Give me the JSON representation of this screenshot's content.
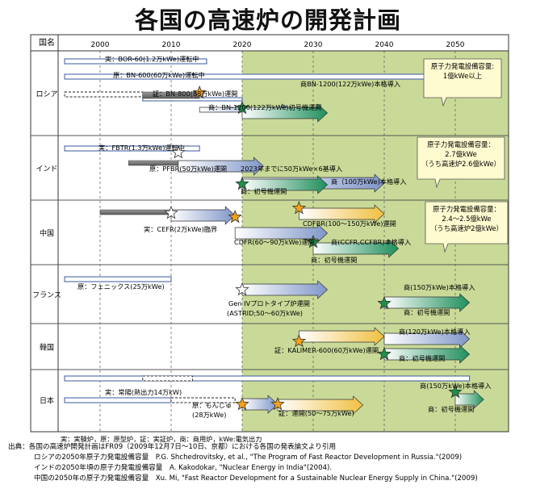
{
  "chart_data": {
    "type": "gantt",
    "title": "各国の高速炉の開発計画",
    "country_header": "国名",
    "x_ticks": [
      2000,
      2010,
      2020,
      2030,
      2040,
      2050
    ],
    "xlim": [
      1995,
      2055
    ],
    "shaded_from": 2020,
    "legend": "実：実験炉，原：原型炉，証：実証炉，商：商用炉，kWe:電気出力",
    "countries": [
      {
        "name": "ロシア",
        "callout": [
          "原子力発電設備容量:",
          "1億kWe以上"
        ],
        "bars": [
          {
            "kind": "solid",
            "start": 1995,
            "end": 2015
          },
          {
            "kind": "solid",
            "start": 1995,
            "end": 2050
          },
          {
            "kind": "dashed",
            "start": 1995,
            "end": 2006
          },
          {
            "kind": "solid",
            "start": 2006,
            "end": 2020
          },
          {
            "kind": "gray",
            "start": 2006,
            "end": 2014
          },
          {
            "kind": "arrow",
            "color": "blue",
            "start": 2014,
            "end": 2027
          },
          {
            "kind": "arrow",
            "color": "green",
            "start": 2020,
            "end": 2032
          }
        ],
        "stars": [
          {
            "year": 2014,
            "color": "orange"
          },
          {
            "year": 2020,
            "color": "green"
          }
        ],
        "labels": [
          "実：BOR-60(1.2万kWe)運転中",
          "原：BN-600(60万kWe)運転中",
          "商BN-1200(122万kWe)本格導入",
          "証：BN-800(88万kWe)運開",
          "商：BN-1200(122万kWe)初号機運開"
        ]
      },
      {
        "name": "インド",
        "callout": [
          "原子力発電設備容量：",
          "2.7億kWe",
          "（うち高速炉2.6億kWe）"
        ],
        "bars": [
          {
            "kind": "solid",
            "start": 1995,
            "end": 2014
          },
          {
            "kind": "gray",
            "start": 2004,
            "end": 2011
          },
          {
            "kind": "arrow",
            "color": "blue",
            "start": 2011,
            "end": 2023
          },
          {
            "kind": "arrow",
            "color": "blue",
            "start": 2020,
            "end": 2040
          },
          {
            "kind": "arrow",
            "color": "green",
            "start": 2020,
            "end": 2032
          }
        ],
        "stars": [
          {
            "year": 2011,
            "color": "white"
          },
          {
            "year": 2020,
            "color": "green"
          }
        ],
        "labels": [
          "実：FBTR(1.3万kWe)運転中",
          "原：PFBR(50万kWe)運開",
          "2023年までに50万kWe×6基導入",
          "商（100万kWe)本格導入",
          "商：初号機運開"
        ]
      },
      {
        "name": "中国",
        "callout": [
          "原子力発電設備容量：",
          "2.4～2.5億kWe",
          "（うち高速炉2億kWe）"
        ],
        "bars": [
          {
            "kind": "gray",
            "start": 2000,
            "end": 2010
          },
          {
            "kind": "arrow",
            "color": "blue",
            "start": 2010,
            "end": 2019
          },
          {
            "kind": "arrow",
            "color": "yellow",
            "start": 2028,
            "end": 2040
          },
          {
            "kind": "arrow",
            "color": "blue",
            "start": 2019,
            "end": 2032
          },
          {
            "kind": "arrow",
            "color": "green",
            "start": 2030,
            "end": 2042
          }
        ],
        "stars": [
          {
            "year": 2010,
            "color": "white"
          },
          {
            "year": 2028,
            "color": "orange"
          },
          {
            "year": 2019,
            "color": "orange"
          },
          {
            "year": 2030,
            "color": "green"
          }
        ],
        "labels": [
          "実：CEFR(2万kWe)臨界",
          "CDFBR(100～150万kWe)運開",
          "CDFR(60～90万kWe)運開",
          "商(CCFR,CCFBR)本格導入",
          "商：初号機運開"
        ]
      },
      {
        "name": "フランス",
        "bars": [
          {
            "kind": "solid",
            "start": 1995,
            "end": 2010
          },
          {
            "kind": "arrow",
            "color": "blue",
            "start": 2020,
            "end": 2032
          },
          {
            "kind": "arrow",
            "color": "green",
            "start": 2040,
            "end": 2052
          }
        ],
        "stars": [
          {
            "year": 2020,
            "color": "white"
          },
          {
            "year": 2040,
            "color": "green"
          }
        ],
        "labels": [
          "原：フェニックス(25万kWe)",
          "Gen IVプロトタイプ炉運開",
          "(ASTRID;50～60万kWe)",
          "商(150万kWe)本格導入",
          "商：初号機運開"
        ]
      },
      {
        "name": "韓国",
        "bars": [
          {
            "kind": "arrow",
            "color": "yellow",
            "start": 2028,
            "end": 2040
          },
          {
            "kind": "arrow",
            "color": "blue",
            "start": 2040,
            "end": 2052
          },
          {
            "kind": "arrow",
            "color": "green",
            "start": 2040,
            "end": 2052
          }
        ],
        "stars": [
          {
            "year": 2028,
            "color": "orange"
          },
          {
            "year": 2040,
            "color": "green"
          }
        ],
        "labels": [
          "商(120万kWe)本格導入",
          "証：KALIMER-600(60万kWe)運開",
          "商：初号機運開"
        ]
      },
      {
        "name": "日本",
        "bars": [
          {
            "kind": "solid",
            "start": 1995,
            "end": 2052
          },
          {
            "kind": "dashed",
            "start": 2006,
            "end": 2013
          },
          {
            "kind": "solid",
            "start": 1995,
            "end": 2010
          },
          {
            "kind": "dashed",
            "start": 2010,
            "end": 2019
          },
          {
            "kind": "arrow",
            "color": "blue",
            "start": 2020,
            "end": 2025
          },
          {
            "kind": "arrow",
            "color": "yellow",
            "start": 2025,
            "end": 2037
          },
          {
            "kind": "arrow",
            "color": "green",
            "start": 2050,
            "end": 2054
          }
        ],
        "stars": [
          {
            "year": 2020,
            "color": "orange"
          },
          {
            "year": 2025,
            "color": "orange"
          },
          {
            "year": 2050,
            "color": "green"
          }
        ],
        "labels": [
          "実：常陽(熱出力14万kW)",
          "原：もんじゅ",
          "(28万kWe)",
          "証：運開(50～75万kWe)",
          "商(150万kWe)本格導入",
          "商：初号機運開"
        ]
      }
    ],
    "notes": [
      "出典：各国の高速炉開発計画はFR09（2009年12月7日～10日、京都）における各国の発表論文より引用",
      "ロシアの2050年原子力発電設備容量　P.G. Shchedrovitsky, et al., \"The Program of Fast Reactor Development in Russia.\"(2009)",
      "インドの2050年頃の原子力発電設備容量　A. Kakodokar, \"Nuclear Energy in India\"(2004).",
      "中国の2050年の原子力発電設備容量　Xu. Mi, \"Fast Reactor Development for a Sustainable Nuclear Energy Supply in China.\"(2009)"
    ]
  }
}
